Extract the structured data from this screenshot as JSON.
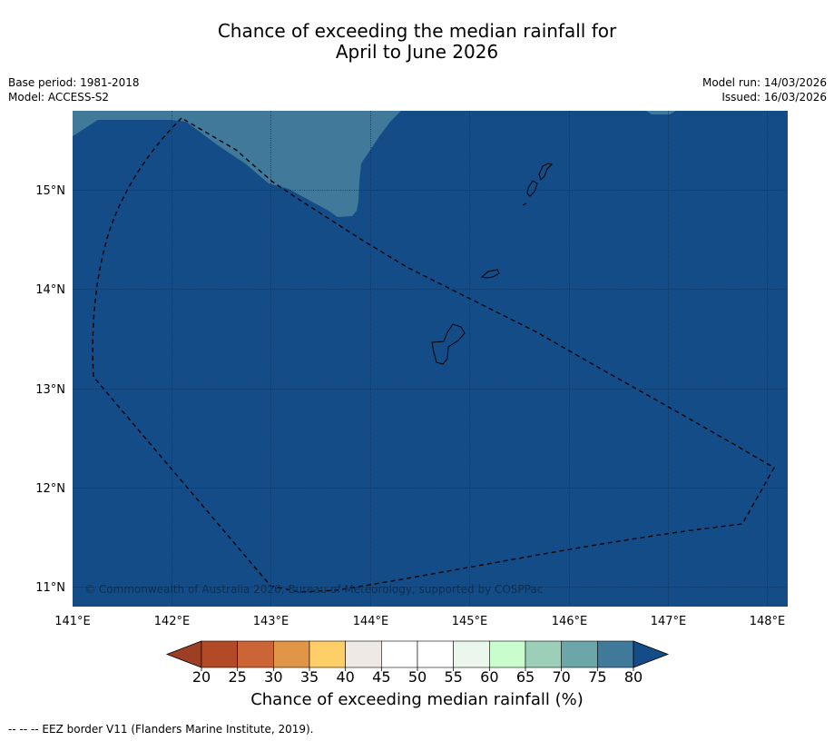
{
  "title": {
    "line1": "Chance of exceeding the median rainfall for",
    "line2": "April to June 2026"
  },
  "meta": {
    "base_period": "Base period: 1981-2018",
    "model": "Model: ACCESS-S2",
    "model_run": "Model run: 14/03/2026",
    "issued": "Issued: 16/03/2026"
  },
  "map": {
    "region": "Guam and Northern Mariana Islands EEZ",
    "lon_range": [
      141.0,
      148.2
    ],
    "lat_range": [
      10.8,
      15.8
    ],
    "lon_ticks": [
      "141°E",
      "142°E",
      "143°E",
      "144°E",
      "145°E",
      "146°E",
      "147°E",
      "148°E"
    ],
    "lat_ticks": [
      "15°N",
      "14°N",
      "13°N",
      "12°N",
      "11°N"
    ],
    "dominant_category": "75-80+",
    "copyright": "© Commonwealth of Australia 2026, Bureau of Meteorology, supported by COSPPac",
    "colors": {
      "above_80": "#144c88",
      "range_75_80": "#40799a"
    }
  },
  "colorbar": {
    "ticks": [
      "20",
      "25",
      "30",
      "35",
      "40",
      "45",
      "50",
      "55",
      "60",
      "65",
      "70",
      "75",
      "80"
    ],
    "colors": [
      "#b24a27",
      "#cc6535",
      "#e19546",
      "#fecf67",
      "#eee9e5",
      "#ffffff",
      "#ffffff",
      "#ebf6ec",
      "#cafdce",
      "#9ccfb7",
      "#6da6a8",
      "#40799a"
    ],
    "under_color": "#9c3f24",
    "over_color": "#144c88",
    "label": "Chance of exceeding median rainfall (%)"
  },
  "footnote": "--  --  -- EEZ border V11 (Flanders Marine Institute, 2019)."
}
